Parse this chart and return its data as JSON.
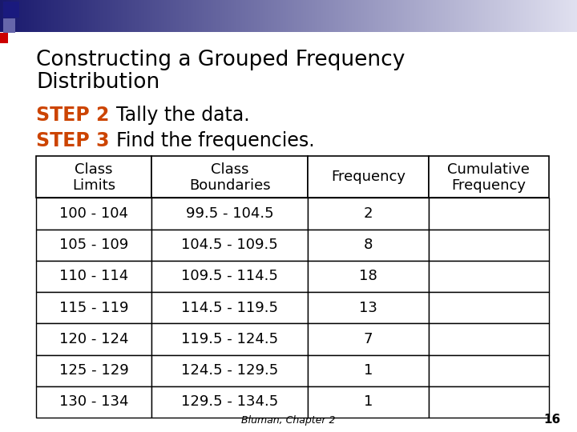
{
  "title_line1": "Constructing a Grouped Frequency",
  "title_line2": "Distribution",
  "step2_label": "STEP 2",
  "step2_text": "Tally the data.",
  "step3_label": "STEP 3",
  "step3_text": "Find the frequencies.",
  "col_headers": [
    "Class\nLimits",
    "Class\nBoundaries",
    "Frequency",
    "Cumulative\nFrequency"
  ],
  "class_limits": [
    "100 - 104",
    "105 - 109",
    "110 - 114",
    "115 - 119",
    "120 - 124",
    "125 - 129",
    "130 - 134"
  ],
  "class_boundaries": [
    "99.5 - 104.5",
    "104.5 - 109.5",
    "109.5 - 114.5",
    "114.5 - 119.5",
    "119.5 - 124.5",
    "124.5 - 129.5",
    "129.5 - 134.5"
  ],
  "frequencies": [
    "2",
    "8",
    "18",
    "13",
    "7",
    "1",
    "1"
  ],
  "cumulative": [
    "",
    "",
    "",
    "",
    "",
    "",
    ""
  ],
  "footer_text": "Bluman, Chapter 2",
  "page_number": "16",
  "bg_color": "#ffffff",
  "title_color": "#000000",
  "step_color": "#cc4400",
  "text_color": "#000000",
  "border_color": "#000000",
  "title_fontsize": 19,
  "step_fontsize": 17,
  "body_fontsize": 13,
  "header_fontsize": 13,
  "footer_fontsize": 9
}
